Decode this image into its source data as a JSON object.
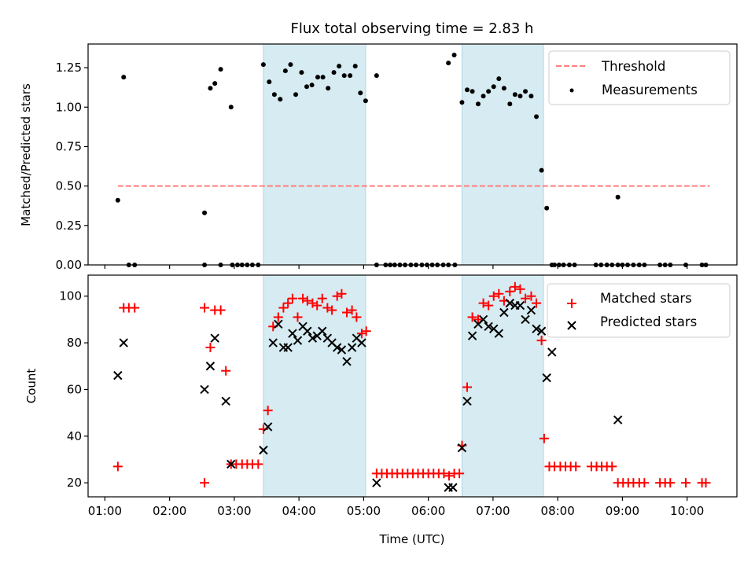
{
  "chart_data": [
    {
      "type": "scatter",
      "title": "Flux total observing time = 2.83 h",
      "xlabel": "",
      "ylabel": "Matched/Predicted stars",
      "xlim": [
        0.74,
        10.77
      ],
      "ylim": [
        0,
        1.4
      ],
      "yticks": [
        0.0,
        0.25,
        0.5,
        0.75,
        1.0,
        1.25
      ],
      "ytick_labels": [
        "0.00",
        "0.25",
        "0.50",
        "0.75",
        "1.00",
        "1.25"
      ],
      "xticks": [
        1,
        2,
        3,
        4,
        5,
        6,
        7,
        8,
        9,
        10
      ],
      "shaded_intervals": [
        [
          3.45,
          5.03
        ],
        [
          6.52,
          7.78
        ]
      ],
      "shade_color": "#add8e6",
      "threshold": {
        "name": "Threshold",
        "value": 0.5,
        "x_range": [
          1.2,
          10.35
        ],
        "color": "#ff7f7f",
        "style": "dashed"
      },
      "series": [
        {
          "name": "Measurements",
          "marker": "dot",
          "color": "#000000",
          "x": [
            1.2,
            1.29,
            1.37,
            1.46,
            2.54,
            2.54,
            2.63,
            2.7,
            2.79,
            2.79,
            2.95,
            2.97,
            3.05,
            3.12,
            3.2,
            3.28,
            3.37,
            3.45,
            3.54,
            3.62,
            3.71,
            3.79,
            3.87,
            3.95,
            4.04,
            4.12,
            4.2,
            4.29,
            4.37,
            4.45,
            4.54,
            4.62,
            4.7,
            4.79,
            4.87,
            4.95,
            5.03,
            5.2,
            5.2,
            5.34,
            5.41,
            5.48,
            5.56,
            5.64,
            5.73,
            5.81,
            5.9,
            5.98,
            6.06,
            6.14,
            6.23,
            6.31,
            6.31,
            6.4,
            6.41,
            6.52,
            6.6,
            6.68,
            6.77,
            6.85,
            6.93,
            7.01,
            7.09,
            7.17,
            7.26,
            7.34,
            7.42,
            7.5,
            7.59,
            7.67,
            7.75,
            7.83,
            7.91,
            7.95,
            8.02,
            8.09,
            8.18,
            8.26,
            8.59,
            8.67,
            8.76,
            8.84,
            8.93,
            8.93,
            9.0,
            9.08,
            9.17,
            9.26,
            9.34,
            9.58,
            9.66,
            9.74,
            9.98,
            10.23,
            10.29
          ],
          "y": [
            0.41,
            1.19,
            0,
            0,
            0.33,
            0,
            1.12,
            1.15,
            1.24,
            0,
            1.0,
            0,
            0,
            0,
            0,
            0,
            0,
            1.27,
            1.16,
            1.08,
            1.05,
            1.23,
            1.27,
            1.08,
            1.22,
            1.13,
            1.14,
            1.19,
            1.19,
            1.12,
            1.22,
            1.26,
            1.2,
            1.2,
            1.26,
            1.09,
            1.04,
            1.2,
            0,
            0,
            0,
            0,
            0,
            0,
            0,
            0,
            0,
            0,
            0,
            0,
            0,
            1.28,
            0,
            1.33,
            0,
            1.03,
            1.11,
            1.1,
            1.02,
            1.07,
            1.1,
            1.13,
            1.18,
            1.12,
            1.02,
            1.08,
            1.07,
            1.1,
            1.07,
            0.94,
            0.6,
            0.36,
            0,
            0,
            0,
            0,
            0,
            0,
            0,
            0,
            0,
            0,
            0.43,
            0,
            0,
            0,
            0,
            0,
            0,
            0,
            0,
            0,
            0,
            0,
            0
          ]
        }
      ],
      "legend": [
        "Threshold",
        "Measurements"
      ],
      "legend_position": "top-right",
      "grid": false
    },
    {
      "type": "scatter",
      "title": "",
      "xlabel": "Time (UTC)",
      "ylabel": "Count",
      "xlim": [
        0.74,
        10.77
      ],
      "ylim": [
        14,
        109
      ],
      "yticks": [
        20,
        40,
        60,
        80,
        100
      ],
      "ytick_labels": [
        "20",
        "40",
        "60",
        "80",
        "100"
      ],
      "xticks": [
        1,
        2,
        3,
        4,
        5,
        6,
        7,
        8,
        9,
        10
      ],
      "xtick_labels": [
        "01:00",
        "02:00",
        "03:00",
        "04:00",
        "05:00",
        "06:00",
        "07:00",
        "08:00",
        "09:00",
        "10:00"
      ],
      "shaded_intervals": [
        [
          3.45,
          5.03
        ],
        [
          6.52,
          7.78
        ]
      ],
      "shade_color": "#add8e6",
      "series": [
        {
          "name": "Matched stars",
          "marker": "plus",
          "color": "#ff0000",
          "x": [
            1.2,
            1.29,
            1.37,
            1.46,
            2.54,
            2.54,
            2.63,
            2.7,
            2.79,
            2.87,
            2.95,
            3.03,
            3.12,
            3.2,
            3.28,
            3.37,
            3.45,
            3.52,
            3.6,
            3.68,
            3.76,
            3.83,
            3.9,
            3.98,
            4.06,
            4.13,
            4.21,
            4.28,
            4.36,
            4.44,
            4.51,
            4.59,
            4.66,
            4.74,
            4.82,
            4.89,
            4.97,
            5.04,
            5.2,
            5.28,
            5.36,
            5.44,
            5.52,
            5.6,
            5.68,
            5.76,
            5.84,
            5.92,
            6.0,
            6.08,
            6.16,
            6.24,
            6.32,
            6.4,
            6.48,
            6.52,
            6.6,
            6.68,
            6.77,
            6.85,
            6.93,
            7.01,
            7.09,
            7.17,
            7.26,
            7.34,
            7.42,
            7.5,
            7.59,
            7.67,
            7.75,
            7.79,
            7.87,
            7.95,
            8.04,
            8.12,
            8.2,
            8.28,
            8.52,
            8.6,
            8.68,
            8.76,
            8.84,
            8.93,
            9.01,
            9.09,
            9.17,
            9.26,
            9.34,
            9.58,
            9.66,
            9.74,
            9.98,
            10.23,
            10.29
          ],
          "y": [
            27,
            95,
            95,
            95,
            95,
            20,
            78,
            94,
            94,
            68,
            28,
            28,
            28,
            28,
            28,
            28,
            43,
            51,
            87,
            91,
            95,
            97,
            99,
            91,
            99,
            98,
            97,
            96,
            99,
            95,
            94,
            100,
            101,
            93,
            94,
            91,
            84,
            85,
            24,
            24,
            24,
            24,
            24,
            24,
            24,
            24,
            24,
            24,
            24,
            24,
            24,
            24,
            23,
            24,
            24,
            36,
            61,
            91,
            90,
            97,
            96,
            100,
            101,
            98,
            102,
            104,
            103,
            99,
            100,
            97,
            81,
            39,
            27,
            27,
            27,
            27,
            27,
            27,
            27,
            27,
            27,
            27,
            27,
            20,
            20,
            20,
            20,
            20,
            20,
            20,
            20,
            20,
            20,
            20,
            20
          ]
        },
        {
          "name": "Predicted stars",
          "marker": "x",
          "color": "#000000",
          "x": [
            1.2,
            1.29,
            2.54,
            2.63,
            2.7,
            2.87,
            2.95,
            3.45,
            3.52,
            3.6,
            3.68,
            3.76,
            3.83,
            3.9,
            3.98,
            4.06,
            4.13,
            4.21,
            4.28,
            4.36,
            4.44,
            4.51,
            4.59,
            4.66,
            4.74,
            4.82,
            4.89,
            4.97,
            5.2,
            6.31,
            6.38,
            6.52,
            6.6,
            6.68,
            6.77,
            6.85,
            6.93,
            7.01,
            7.09,
            7.17,
            7.26,
            7.34,
            7.42,
            7.5,
            7.59,
            7.67,
            7.75,
            7.83,
            7.91,
            8.93
          ],
          "y": [
            66,
            80,
            60,
            70,
            82,
            55,
            28,
            34,
            44,
            80,
            88,
            78,
            78,
            84,
            81,
            87,
            85,
            82,
            83,
            85,
            82,
            80,
            78,
            77,
            72,
            78,
            82,
            80,
            20,
            18,
            18,
            35,
            55,
            83,
            88,
            90,
            87,
            86,
            84,
            93,
            97,
            96,
            96,
            90,
            94,
            86,
            85,
            65,
            76,
            47
          ]
        }
      ],
      "legend": [
        "Matched stars",
        "Predicted stars"
      ],
      "legend_position": "top-right",
      "grid": false
    }
  ]
}
